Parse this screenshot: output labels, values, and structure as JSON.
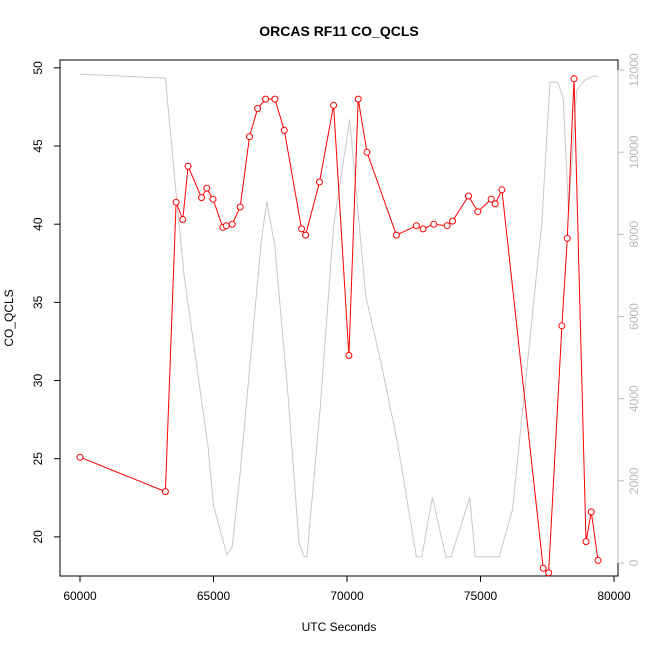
{
  "chart_data": {
    "type": "line",
    "title": "ORCAS RF11 CO_QCLS",
    "xlabel": "UTC Seconds",
    "ylabel": "CO_QCLS",
    "y2label": "",
    "xlim": [
      60000,
      80000
    ],
    "ylim": [
      17.5,
      50.5
    ],
    "y2lim": [
      0,
      12000
    ],
    "x_ticks": [
      60000,
      65000,
      70000,
      75000,
      80000
    ],
    "y_ticks": [
      20,
      25,
      30,
      35,
      40,
      45,
      50
    ],
    "y2_ticks": [
      0,
      2000,
      4000,
      6000,
      8000,
      10000,
      12000
    ],
    "colors": {
      "co": "#ff0000",
      "altitude": "#c8c8c8",
      "right_axis": "#b8b8b8"
    },
    "series": [
      {
        "axis": "left",
        "style": "line+points",
        "x": [
          60000,
          63200,
          63600,
          63850,
          64050,
          64550,
          64750,
          64980,
          65350,
          65480,
          65700,
          66000,
          66350,
          66650,
          66950,
          67300,
          67650,
          68300,
          68450,
          68970,
          69500,
          70070,
          70420,
          70750,
          71850,
          72600,
          72850,
          73250,
          73750,
          73950,
          74550,
          74900,
          75400,
          75550,
          75800,
          77350,
          77550,
          78050,
          78250,
          78500,
          78950,
          79150,
          79400
        ],
        "y": [
          25.1,
          22.9,
          41.4,
          40.3,
          43.7,
          41.7,
          42.3,
          41.6,
          39.8,
          39.9,
          40.0,
          41.1,
          45.6,
          47.4,
          48.0,
          48.0,
          46.0,
          39.7,
          39.3,
          42.7,
          47.6,
          31.6,
          48.0,
          44.6,
          39.3,
          39.9,
          39.7,
          40.0,
          39.9,
          40.2,
          41.8,
          40.8,
          41.6,
          41.3,
          42.2,
          18.0,
          17.7,
          33.5,
          39.1,
          49.3,
          19.7,
          21.6,
          18.5
        ]
      },
      {
        "axis": "right",
        "style": "line",
        "x": [
          60000,
          63200,
          63600,
          63900,
          64200,
          64800,
          65000,
          65500,
          65700,
          66000,
          66500,
          66800,
          67000,
          67300,
          67800,
          68200,
          68400,
          68500,
          69000,
          69500,
          70100,
          70700,
          71300,
          71900,
          72600,
          72800,
          73200,
          73700,
          73900,
          74600,
          74800,
          75500,
          75700,
          76200,
          76700,
          77300,
          77600,
          77900,
          78100,
          78300,
          78600,
          78900,
          79200,
          79400
        ],
        "y": [
          11900,
          11800,
          9000,
          7000,
          5600,
          2800,
          1400,
          200,
          400,
          2200,
          5800,
          7900,
          8800,
          7700,
          4000,
          500,
          150,
          150,
          3800,
          8200,
          10800,
          6500,
          4800,
          2900,
          150,
          150,
          1600,
          150,
          150,
          1600,
          150,
          150,
          150,
          1300,
          4500,
          8300,
          11700,
          11700,
          11300,
          8500,
          11500,
          11750,
          11850,
          11850
        ]
      }
    ]
  }
}
